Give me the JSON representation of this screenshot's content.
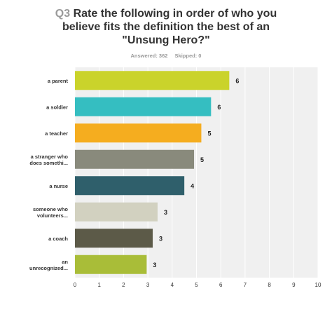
{
  "header": {
    "question_number": "Q3",
    "title_line1": "Rate the following in order of who you",
    "title_line2": "believe fits the definition the best of an",
    "title_line3": "\"Unsung Hero?\"",
    "answered_label": "Answered: 362",
    "skipped_label": "Skipped: 0"
  },
  "chart_data": {
    "type": "bar",
    "orientation": "horizontal",
    "categories": [
      [
        "a parent"
      ],
      [
        "a soldier"
      ],
      [
        "a teacher"
      ],
      [
        "a stranger who",
        "does somethi..."
      ],
      [
        "a nurse"
      ],
      [
        "someone who",
        "volunteers..."
      ],
      [
        "a coach"
      ],
      [
        "an",
        "unrecognized..."
      ]
    ],
    "values": [
      6.35,
      5.6,
      5.2,
      4.9,
      4.5,
      3.4,
      3.2,
      2.95
    ],
    "value_labels": [
      "6",
      "6",
      "5",
      "5",
      "4",
      "3",
      "3",
      "3"
    ],
    "colors": [
      "#cad32b",
      "#35bec1",
      "#f5ad1f",
      "#898a7c",
      "#2f5f6b",
      "#d2d1c0",
      "#5c5a48",
      "#a9bd38"
    ],
    "xlim": [
      0,
      10
    ],
    "xticks": [
      "0",
      "1",
      "2",
      "3",
      "4",
      "5",
      "6",
      "7",
      "8",
      "9",
      "10"
    ],
    "grid": true,
    "legend": "none"
  }
}
